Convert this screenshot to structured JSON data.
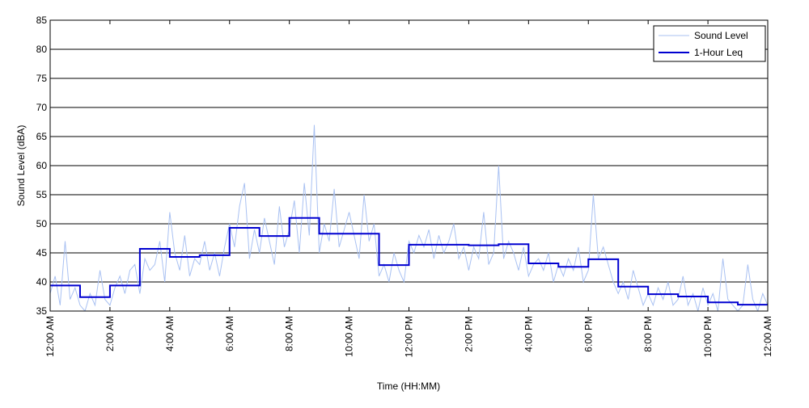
{
  "chart_data": {
    "type": "line",
    "xlabel": "Time (HH:MM)",
    "ylabel": "Sound Level (dBA)",
    "xlim": [
      0,
      1440
    ],
    "ylim": [
      35,
      85
    ],
    "xticks": [
      {
        "value": 0,
        "label": "12:00 AM"
      },
      {
        "value": 120,
        "label": "2:00 AM"
      },
      {
        "value": 240,
        "label": "4:00 AM"
      },
      {
        "value": 360,
        "label": "6:00 AM"
      },
      {
        "value": 480,
        "label": "8:00 AM"
      },
      {
        "value": 600,
        "label": "10:00 AM"
      },
      {
        "value": 720,
        "label": "12:00 PM"
      },
      {
        "value": 840,
        "label": "2:00 PM"
      },
      {
        "value": 960,
        "label": "4:00 PM"
      },
      {
        "value": 1080,
        "label": "6:00 PM"
      },
      {
        "value": 1200,
        "label": "8:00 PM"
      },
      {
        "value": 1320,
        "label": "10:00 PM"
      },
      {
        "value": 1440,
        "label": "12:00 AM"
      }
    ],
    "yticks": [
      35,
      40,
      45,
      50,
      55,
      60,
      65,
      70,
      75,
      80,
      85
    ],
    "grid": true,
    "legend": "upper right",
    "series": [
      {
        "name": "Sound Level",
        "color": "#a9c1f2",
        "width": 1,
        "x": [
          0,
          10,
          20,
          30,
          40,
          50,
          60,
          70,
          80,
          90,
          100,
          110,
          120,
          130,
          140,
          150,
          160,
          170,
          180,
          190,
          200,
          210,
          220,
          230,
          240,
          250,
          260,
          270,
          280,
          290,
          300,
          310,
          320,
          330,
          340,
          350,
          360,
          370,
          380,
          390,
          400,
          410,
          420,
          430,
          440,
          450,
          460,
          470,
          480,
          490,
          500,
          510,
          520,
          530,
          540,
          550,
          560,
          570,
          580,
          590,
          600,
          610,
          620,
          630,
          640,
          650,
          660,
          670,
          680,
          690,
          700,
          710,
          720,
          730,
          740,
          750,
          760,
          770,
          780,
          790,
          800,
          810,
          820,
          830,
          840,
          850,
          860,
          870,
          880,
          890,
          900,
          910,
          920,
          930,
          940,
          950,
          960,
          970,
          980,
          990,
          1000,
          1010,
          1020,
          1030,
          1040,
          1050,
          1060,
          1070,
          1080,
          1090,
          1100,
          1110,
          1120,
          1130,
          1140,
          1150,
          1160,
          1170,
          1180,
          1190,
          1200,
          1210,
          1220,
          1230,
          1240,
          1250,
          1260,
          1270,
          1280,
          1290,
          1300,
          1310,
          1320,
          1330,
          1340,
          1350,
          1360,
          1370,
          1380,
          1390,
          1400,
          1410,
          1420,
          1430,
          1440
        ],
        "values": [
          38,
          41,
          36,
          47,
          37,
          39,
          36,
          35,
          38,
          36,
          42,
          37,
          36,
          39,
          41,
          38,
          42,
          43,
          38,
          44,
          42,
          43,
          47,
          40,
          52,
          45,
          42,
          48,
          41,
          44,
          43,
          47,
          42,
          45,
          41,
          46,
          50,
          46,
          53,
          57,
          44,
          49,
          45,
          51,
          47,
          43,
          53,
          46,
          49,
          54,
          45,
          57,
          48,
          67,
          45,
          50,
          47,
          56,
          46,
          49,
          52,
          48,
          44,
          55,
          47,
          50,
          41,
          43,
          40,
          45,
          42,
          40,
          47,
          45,
          48,
          46,
          49,
          44,
          48,
          45,
          47,
          50,
          44,
          46,
          42,
          46,
          44,
          52,
          43,
          45,
          60,
          44,
          47,
          45,
          42,
          46,
          41,
          43,
          44,
          42,
          45,
          40,
          43,
          41,
          44,
          42,
          46,
          40,
          42,
          55,
          44,
          46,
          43,
          40,
          38,
          40,
          37,
          42,
          39,
          36,
          38,
          36,
          39,
          37,
          40,
          36,
          37,
          41,
          36,
          38,
          35,
          39,
          36,
          38,
          35,
          44,
          37,
          36,
          35,
          36,
          43,
          37,
          35,
          38,
          36
        ]
      },
      {
        "name": "1-Hour Leq",
        "color": "#0000d0",
        "width": 2,
        "step": "post",
        "x": [
          0,
          60,
          120,
          180,
          240,
          300,
          360,
          420,
          480,
          540,
          600,
          660,
          720,
          780,
          840,
          900,
          960,
          1020,
          1080,
          1140,
          1200,
          1260,
          1320,
          1380
        ],
        "values": [
          39.4,
          37.4,
          39.4,
          45.7,
          44.3,
          44.6,
          49.3,
          47.9,
          51.0,
          48.3,
          48.3,
          42.9,
          46.4,
          46.4,
          46.3,
          46.5,
          43.2,
          42.6,
          43.9,
          39.2,
          37.9,
          37.5,
          36.5,
          36.1
        ]
      }
    ]
  }
}
